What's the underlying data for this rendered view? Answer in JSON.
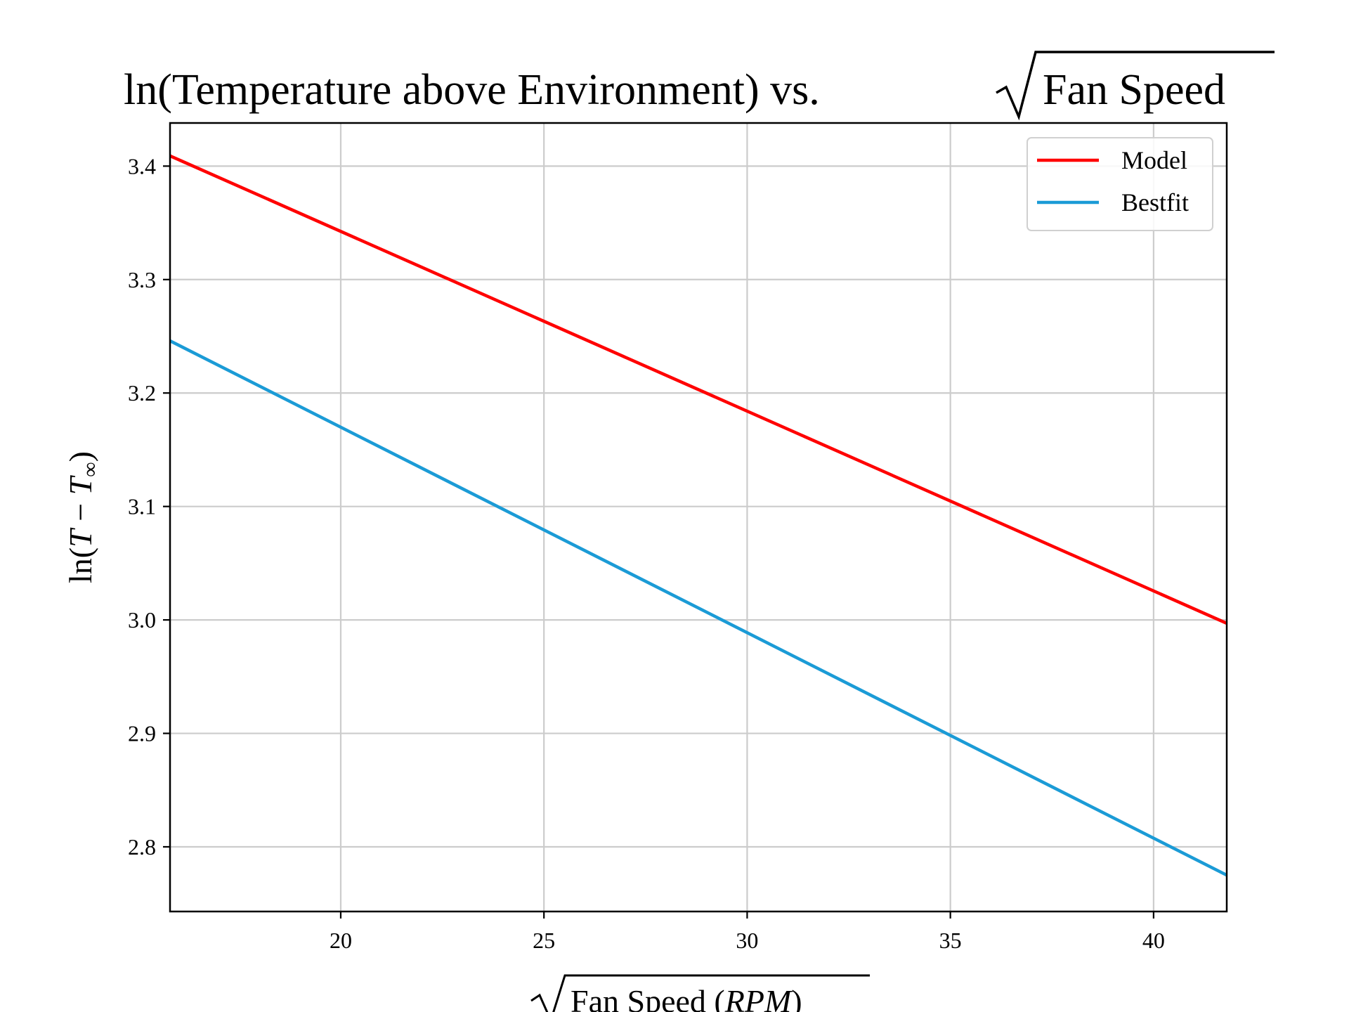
{
  "chart_data": {
    "type": "line",
    "title_prefix": "ln(Temperature above Environment) vs. ",
    "title_radicand": "Fan Speed",
    "xlabel_radicand": "Fan Speed (",
    "xlabel_unit": "RPM",
    "xlabel_close": ")",
    "ylabel_prefix": "ln(",
    "ylabel_T1": "T",
    "ylabel_minus": " − ",
    "ylabel_T2": "T",
    "ylabel_sub": "∞",
    "ylabel_close": ")",
    "xlim": [
      15.8,
      41.8
    ],
    "ylim": [
      2.743,
      3.438
    ],
    "x_ticks": [
      20,
      25,
      30,
      35,
      40
    ],
    "x_tick_labels": [
      "20",
      "25",
      "30",
      "35",
      "40"
    ],
    "y_ticks": [
      2.8,
      2.9,
      3.0,
      3.1,
      3.2,
      3.3,
      3.4
    ],
    "y_tick_labels": [
      "2.8",
      "2.9",
      "3.0",
      "3.1",
      "3.2",
      "3.3",
      "3.4"
    ],
    "grid": true,
    "legend_position": "upper right",
    "series": [
      {
        "name": "Model",
        "color": "#ff0000",
        "x": [
          15.8,
          41.8
        ],
        "y": [
          3.409,
          2.997
        ]
      },
      {
        "name": "Bestfit",
        "color": "#1b9bd6",
        "x": [
          15.8,
          41.8
        ],
        "y": [
          3.246,
          2.775
        ]
      }
    ]
  }
}
